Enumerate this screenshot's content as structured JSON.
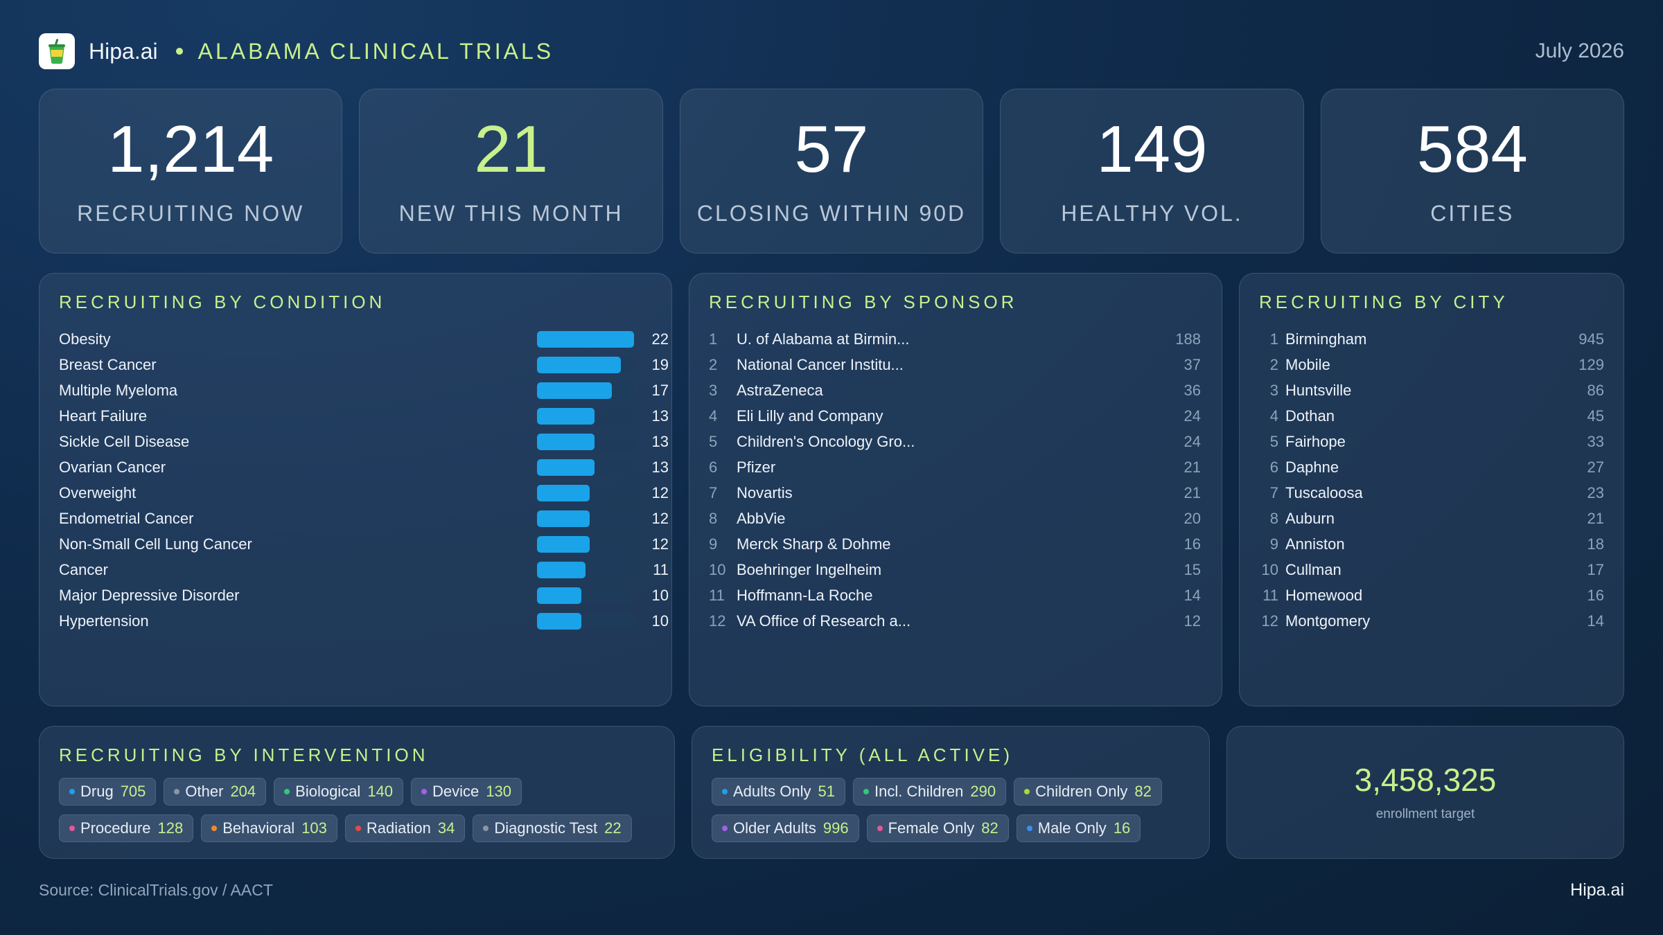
{
  "header": {
    "brand": "Hipa.ai",
    "title": "ALABAMA CLINICAL TRIALS",
    "date": "July 2026",
    "logo_icon": "drink-cup-icon"
  },
  "stats": [
    {
      "value": "1,214",
      "label": "RECRUITING NOW",
      "accent": false
    },
    {
      "value": "21",
      "label": "NEW THIS MONTH",
      "accent": true
    },
    {
      "value": "57",
      "label": "CLOSING WITHIN 90D",
      "accent": false
    },
    {
      "value": "149",
      "label": "HEALTHY VOL.",
      "accent": false
    },
    {
      "value": "584",
      "label": "CITIES",
      "accent": false
    }
  ],
  "by_condition": {
    "title": "RECRUITING BY CONDITION",
    "max": 22,
    "items": [
      {
        "name": "Obesity",
        "value": 22
      },
      {
        "name": "Breast Cancer",
        "value": 19
      },
      {
        "name": "Multiple Myeloma",
        "value": 17
      },
      {
        "name": "Heart Failure",
        "value": 13
      },
      {
        "name": "Sickle Cell Disease",
        "value": 13
      },
      {
        "name": "Ovarian Cancer",
        "value": 13
      },
      {
        "name": "Overweight",
        "value": 12
      },
      {
        "name": "Endometrial Cancer",
        "value": 12
      },
      {
        "name": "Non-Small Cell Lung Cancer",
        "value": 12
      },
      {
        "name": "Cancer",
        "value": 11
      },
      {
        "name": "Major Depressive Disorder",
        "value": 10
      },
      {
        "name": "Hypertension",
        "value": 10
      }
    ]
  },
  "by_sponsor": {
    "title": "RECRUITING BY SPONSOR",
    "items": [
      {
        "rank": "1",
        "name": "U. of Alabama at Birmin...",
        "value": "188"
      },
      {
        "rank": "2",
        "name": "National Cancer Institu...",
        "value": "37"
      },
      {
        "rank": "3",
        "name": "AstraZeneca",
        "value": "36"
      },
      {
        "rank": "4",
        "name": "Eli Lilly and Company",
        "value": "24"
      },
      {
        "rank": "5",
        "name": "Children's Oncology Gro...",
        "value": "24"
      },
      {
        "rank": "6",
        "name": "Pfizer",
        "value": "21"
      },
      {
        "rank": "7",
        "name": "Novartis",
        "value": "21"
      },
      {
        "rank": "8",
        "name": "AbbVie",
        "value": "20"
      },
      {
        "rank": "9",
        "name": "Merck Sharp & Dohme",
        "value": "16"
      },
      {
        "rank": "10",
        "name": "Boehringer Ingelheim",
        "value": "15"
      },
      {
        "rank": "11",
        "name": "Hoffmann-La Roche",
        "value": "14"
      },
      {
        "rank": "12",
        "name": "VA Office of Research a...",
        "value": "12"
      }
    ]
  },
  "by_city": {
    "title": "RECRUITING BY CITY",
    "items": [
      {
        "rank": "1",
        "name": "Birmingham",
        "value": "945"
      },
      {
        "rank": "2",
        "name": "Mobile",
        "value": "129"
      },
      {
        "rank": "3",
        "name": "Huntsville",
        "value": "86"
      },
      {
        "rank": "4",
        "name": "Dothan",
        "value": "45"
      },
      {
        "rank": "5",
        "name": "Fairhope",
        "value": "33"
      },
      {
        "rank": "6",
        "name": "Daphne",
        "value": "27"
      },
      {
        "rank": "7",
        "name": "Tuscaloosa",
        "value": "23"
      },
      {
        "rank": "8",
        "name": "Auburn",
        "value": "21"
      },
      {
        "rank": "9",
        "name": "Anniston",
        "value": "18"
      },
      {
        "rank": "10",
        "name": "Cullman",
        "value": "17"
      },
      {
        "rank": "11",
        "name": "Homewood",
        "value": "16"
      },
      {
        "rank": "12",
        "name": "Montgomery",
        "value": "14"
      }
    ]
  },
  "by_intervention": {
    "title": "RECRUITING BY INTERVENTION",
    "chips": [
      {
        "label": "Drug",
        "count": "705",
        "color": "#1aa3e8"
      },
      {
        "label": "Other",
        "count": "204",
        "color": "#8a96a6"
      },
      {
        "label": "Biological",
        "count": "140",
        "color": "#34c77b"
      },
      {
        "label": "Device",
        "count": "130",
        "color": "#a261e8"
      },
      {
        "label": "Procedure",
        "count": "128",
        "color": "#e8559a"
      },
      {
        "label": "Behavioral",
        "count": "103",
        "color": "#f08a2c"
      },
      {
        "label": "Radiation",
        "count": "34",
        "color": "#e84848"
      },
      {
        "label": "Diagnostic Test",
        "count": "22",
        "color": "#8a96a6"
      }
    ]
  },
  "eligibility": {
    "title": "ELIGIBILITY (ALL ACTIVE)",
    "chips": [
      {
        "label": "Adults Only",
        "count": "51",
        "color": "#1aa3e8"
      },
      {
        "label": "Incl. Children",
        "count": "290",
        "color": "#34c77b"
      },
      {
        "label": "Children Only",
        "count": "82",
        "color": "#a8d83a"
      },
      {
        "label": "Older Adults",
        "count": "996",
        "color": "#a261e8"
      },
      {
        "label": "Female Only",
        "count": "82",
        "color": "#e8559a"
      },
      {
        "label": "Male Only",
        "count": "16",
        "color": "#3a8ff0"
      }
    ]
  },
  "enrollment": {
    "value": "3,458,325",
    "label": "enrollment target"
  },
  "footer": {
    "source": "Source: ClinicalTrials.gov /  AACT",
    "brand": "Hipa.ai"
  }
}
